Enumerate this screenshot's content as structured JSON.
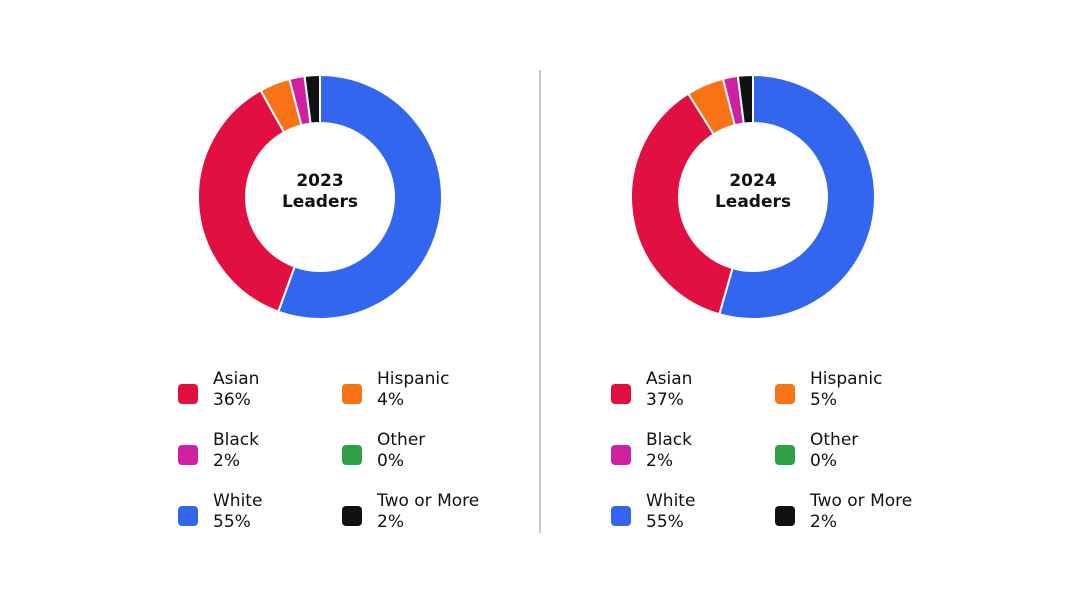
{
  "chart_data": [
    {
      "type": "pie",
      "title": "2023 Leaders",
      "categories": [
        "Asian",
        "Hispanic",
        "Black",
        "Other",
        "White",
        "Two or More"
      ],
      "values": [
        36,
        4,
        2,
        0,
        55,
        2
      ],
      "value_labels": [
        "36%",
        "4%",
        "2%",
        "0%",
        "55%",
        "2%"
      ],
      "colors": [
        "#e11040",
        "#f97316",
        "#d01fa0",
        "#2ea043",
        "#3366ee",
        "#111111"
      ]
    },
    {
      "type": "pie",
      "title": "2024 Leaders",
      "categories": [
        "Asian",
        "Hispanic",
        "Black",
        "Other",
        "White",
        "Two or More"
      ],
      "values": [
        37,
        5,
        2,
        0,
        55,
        2
      ],
      "value_labels": [
        "37%",
        "5%",
        "2%",
        "0%",
        "55%",
        "2%"
      ],
      "colors": [
        "#e11040",
        "#f97316",
        "#d01fa0",
        "#2ea043",
        "#3366ee",
        "#111111"
      ]
    }
  ]
}
